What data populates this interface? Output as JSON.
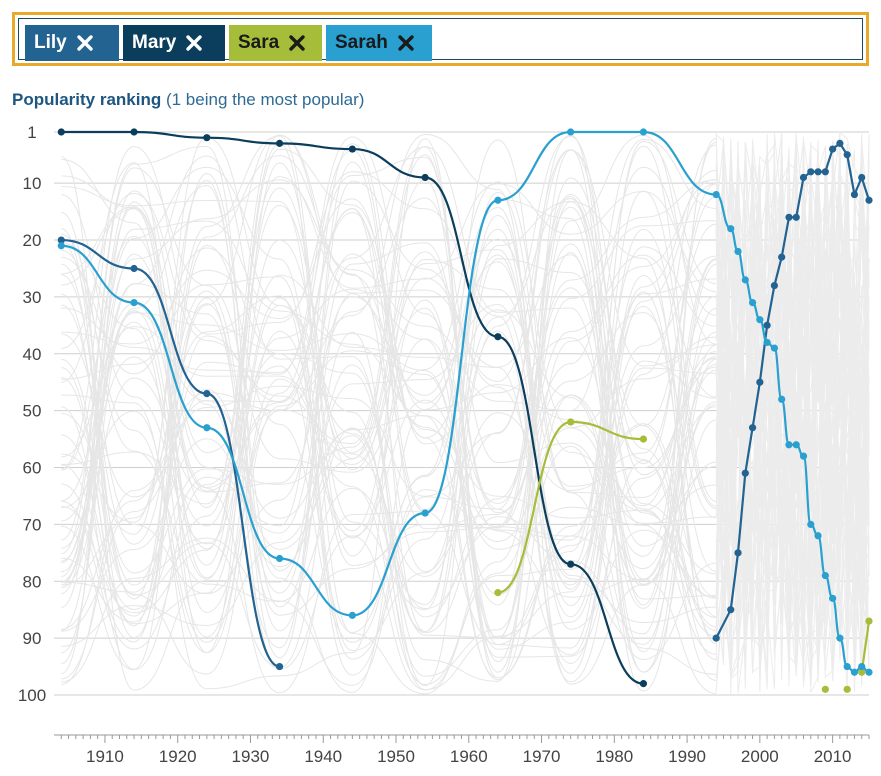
{
  "tags": [
    {
      "label": "Lily",
      "color": "#236391",
      "text_color": "#ffffff"
    },
    {
      "label": "Mary",
      "color": "#0a3e5c",
      "text_color": "#ffffff"
    },
    {
      "label": "Sara",
      "color": "#a6bd3a",
      "text_color": "#1a1a1a"
    },
    {
      "label": "Sarah",
      "color": "#2aa0d0",
      "text_color": "#1a1a1a"
    }
  ],
  "chart_title_bold": "Popularity ranking",
  "chart_title_rest": " (1 being the most popular)",
  "chart_data": {
    "type": "line",
    "title": "Popularity ranking (1 being the most popular)",
    "xlabel": "",
    "ylabel": "",
    "xlim": [
      1903,
      2015
    ],
    "ylim": [
      100,
      1
    ],
    "y_inverted": true,
    "x_ticks": [
      1910,
      1920,
      1930,
      1940,
      1950,
      1960,
      1970,
      1980,
      1990,
      2000,
      2010
    ],
    "y_ticks": [
      1,
      10,
      20,
      30,
      40,
      50,
      60,
      70,
      80,
      90,
      100
    ],
    "grid": true,
    "background_lines": "many faint grey lines for other names",
    "series": [
      {
        "name": "Lily",
        "color": "#236391",
        "points": [
          [
            1904,
            20
          ],
          [
            1914,
            25
          ],
          [
            1924,
            47
          ],
          [
            1934,
            95
          ],
          [
            1994,
            90
          ],
          [
            1996,
            85
          ],
          [
            1997,
            75
          ],
          [
            1998,
            61
          ],
          [
            1999,
            53
          ],
          [
            2000,
            45
          ],
          [
            2001,
            35
          ],
          [
            2002,
            28
          ],
          [
            2003,
            23
          ],
          [
            2004,
            16
          ],
          [
            2005,
            16
          ],
          [
            2006,
            9
          ],
          [
            2007,
            8
          ],
          [
            2008,
            8
          ],
          [
            2009,
            8
          ],
          [
            2010,
            4
          ],
          [
            2011,
            3
          ],
          [
            2012,
            5
          ],
          [
            2013,
            12
          ],
          [
            2014,
            9
          ],
          [
            2015,
            13
          ]
        ]
      },
      {
        "name": "Mary",
        "color": "#0a3e5c",
        "points": [
          [
            1904,
            1
          ],
          [
            1914,
            1
          ],
          [
            1924,
            2
          ],
          [
            1934,
            3
          ],
          [
            1944,
            4
          ],
          [
            1954,
            9
          ],
          [
            1964,
            37
          ],
          [
            1974,
            77
          ],
          [
            1984,
            98
          ]
        ]
      },
      {
        "name": "Sara",
        "color": "#a6bd3a",
        "points": [
          [
            1964,
            82
          ],
          [
            1974,
            52
          ],
          [
            1984,
            55
          ]
        ],
        "extra_points": [
          [
            2009,
            99
          ],
          [
            2012,
            99
          ],
          [
            2014,
            96
          ],
          [
            2015,
            87
          ]
        ]
      },
      {
        "name": "Sarah",
        "color": "#2aa0d0",
        "points": [
          [
            1904,
            21
          ],
          [
            1914,
            31
          ],
          [
            1924,
            53
          ],
          [
            1934,
            76
          ],
          [
            1944,
            86
          ],
          [
            1954,
            68
          ],
          [
            1964,
            13
          ],
          [
            1974,
            1
          ],
          [
            1984,
            1
          ],
          [
            1994,
            12
          ],
          [
            1996,
            18
          ],
          [
            1997,
            22
          ],
          [
            1998,
            27
          ],
          [
            1999,
            31
          ],
          [
            2000,
            34
          ],
          [
            2001,
            38
          ],
          [
            2002,
            39
          ],
          [
            2003,
            48
          ],
          [
            2004,
            56
          ],
          [
            2005,
            56
          ],
          [
            2006,
            58
          ],
          [
            2007,
            70
          ],
          [
            2008,
            72
          ],
          [
            2009,
            79
          ],
          [
            2010,
            83
          ],
          [
            2011,
            90
          ],
          [
            2012,
            95
          ],
          [
            2013,
            96
          ],
          [
            2014,
            95
          ],
          [
            2015,
            96
          ]
        ]
      }
    ]
  }
}
